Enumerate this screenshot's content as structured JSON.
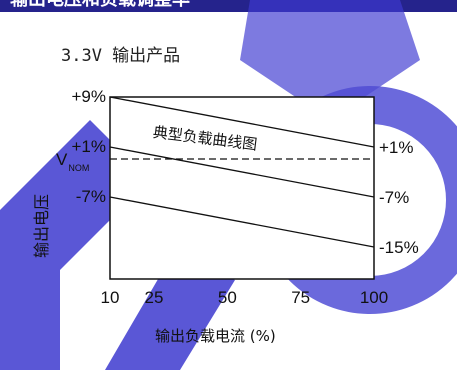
{
  "header": {
    "title": "输出电压和负载调整率"
  },
  "chart_data": {
    "type": "line",
    "title": "3.3V 输出产品",
    "xlabel": "输出负载电流 (%)",
    "ylabel": "输出电压",
    "x_ticks": [
      "10",
      "25",
      "50",
      "75",
      "100"
    ],
    "xlim": [
      10,
      100
    ],
    "y_ticks_left": [
      "+9%",
      "+1%",
      "-7%"
    ],
    "y_ticks_right": [
      "+1%",
      "-7%",
      "-15%"
    ],
    "nominal_label": "V",
    "nominal_sub": "NOM",
    "nominal_value": -0.5,
    "ylim": [
      -18,
      9
    ],
    "annotation": "典型负载曲线图",
    "series": [
      {
        "x": [
          10,
          100
        ],
        "y": [
          9,
          1
        ]
      },
      {
        "x": [
          10,
          100
        ],
        "y": [
          1,
          -7
        ]
      },
      {
        "x": [
          10,
          100
        ],
        "y": [
          -7,
          -15
        ]
      }
    ]
  }
}
